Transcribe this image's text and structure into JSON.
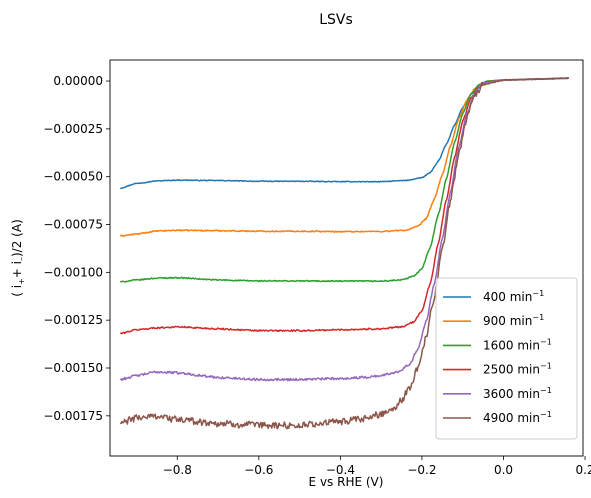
{
  "chart_data": {
    "type": "line",
    "title": "LSVs",
    "xlabel": "E vs RHE (V)",
    "ylabel": {
      "prefix": "( i",
      "sub1": "+",
      "mid": "+ i",
      "sub2": "–",
      "suffix": ")/2 (A)"
    },
    "xlim": [
      -0.965,
      0.195
    ],
    "ylim": [
      -0.00196,
      0.00011
    ],
    "xticks": [
      {
        "value": -0.8,
        "label": "−0.8"
      },
      {
        "value": -0.6,
        "label": "−0.6"
      },
      {
        "value": -0.4,
        "label": "−0.4"
      },
      {
        "value": -0.2,
        "label": "−0.2"
      },
      {
        "value": 0.0,
        "label": "0.0"
      },
      {
        "value": 0.2,
        "label": "0.2"
      }
    ],
    "yticks": [
      {
        "value": 0.0,
        "label": "0.00000"
      },
      {
        "value": -0.00025,
        "label": "−0.00025"
      },
      {
        "value": -0.0005,
        "label": "−0.00050"
      },
      {
        "value": -0.00075,
        "label": "−0.00075"
      },
      {
        "value": -0.001,
        "label": "−0.00100"
      },
      {
        "value": -0.00125,
        "label": "−0.00125"
      },
      {
        "value": -0.0015,
        "label": "−0.00150"
      },
      {
        "value": -0.00175,
        "label": "−0.00175"
      }
    ],
    "legend_position": "lower-right",
    "series": [
      {
        "name": "400 min",
        "sup": "−1",
        "color": "#1f77b4",
        "noise": 2e-06,
        "points": [
          [
            -0.94,
            -0.00056
          ],
          [
            -0.9,
            -0.000535
          ],
          [
            -0.85,
            -0.000522
          ],
          [
            -0.8,
            -0.000518
          ],
          [
            -0.7,
            -0.00052
          ],
          [
            -0.6,
            -0.000524
          ],
          [
            -0.5,
            -0.000524
          ],
          [
            -0.4,
            -0.000526
          ],
          [
            -0.3,
            -0.000526
          ],
          [
            -0.24,
            -0.00052
          ],
          [
            -0.2,
            -0.000505
          ],
          [
            -0.18,
            -0.00048
          ],
          [
            -0.16,
            -0.00042
          ],
          [
            -0.14,
            -0.00033
          ],
          [
            -0.12,
            -0.00023
          ],
          [
            -0.1,
            -0.00014
          ],
          [
            -0.08,
            -7e-05
          ],
          [
            -0.06,
            -3e-05
          ],
          [
            -0.04,
            -5e-06
          ],
          [
            -0.02,
            3e-06
          ],
          [
            0.0,
            6e-06
          ],
          [
            0.1,
            1.2e-05
          ],
          [
            0.16,
            1.6e-05
          ]
        ]
      },
      {
        "name": "900 min",
        "sup": "−1",
        "color": "#ff7f0e",
        "noise": 3e-06,
        "points": [
          [
            -0.94,
            -0.00081
          ],
          [
            -0.9,
            -0.0008
          ],
          [
            -0.85,
            -0.000784
          ],
          [
            -0.8,
            -0.00078
          ],
          [
            -0.7,
            -0.000782
          ],
          [
            -0.6,
            -0.000785
          ],
          [
            -0.5,
            -0.000785
          ],
          [
            -0.4,
            -0.000787
          ],
          [
            -0.3,
            -0.000786
          ],
          [
            -0.24,
            -0.00078
          ],
          [
            -0.21,
            -0.00076
          ],
          [
            -0.19,
            -0.00072
          ],
          [
            -0.17,
            -0.00062
          ],
          [
            -0.15,
            -0.00049
          ],
          [
            -0.13,
            -0.00034
          ],
          [
            -0.11,
            -0.0002
          ],
          [
            -0.09,
            -0.0001
          ],
          [
            -0.07,
            -4e-05
          ],
          [
            -0.05,
            -1e-05
          ],
          [
            -0.03,
            0.0
          ],
          [
            0.0,
            5e-06
          ],
          [
            0.1,
            1.1e-05
          ],
          [
            0.16,
            1.5e-05
          ]
        ]
      },
      {
        "name": "1600 min",
        "sup": "−1",
        "color": "#2ca02c",
        "noise": 3e-06,
        "points": [
          [
            -0.94,
            -0.00105
          ],
          [
            -0.9,
            -0.00104
          ],
          [
            -0.85,
            -0.00103
          ],
          [
            -0.8,
            -0.001028
          ],
          [
            -0.7,
            -0.00104
          ],
          [
            -0.6,
            -0.001045
          ],
          [
            -0.5,
            -0.001045
          ],
          [
            -0.4,
            -0.001046
          ],
          [
            -0.3,
            -0.001046
          ],
          [
            -0.25,
            -0.00104
          ],
          [
            -0.22,
            -0.00102
          ],
          [
            -0.2,
            -0.00098
          ],
          [
            -0.18,
            -0.00087
          ],
          [
            -0.16,
            -0.0007
          ],
          [
            -0.14,
            -0.00051
          ],
          [
            -0.12,
            -0.00032
          ],
          [
            -0.1,
            -0.00017
          ],
          [
            -0.08,
            -7e-05
          ],
          [
            -0.06,
            -2e-05
          ],
          [
            -0.04,
            0.0
          ],
          [
            0.0,
            5e-06
          ],
          [
            0.1,
            1.1e-05
          ],
          [
            0.16,
            1.5e-05
          ]
        ]
      },
      {
        "name": "2500 min",
        "sup": "−1",
        "color": "#d62728",
        "noise": 4e-06,
        "points": [
          [
            -0.94,
            -0.00132
          ],
          [
            -0.9,
            -0.0013
          ],
          [
            -0.85,
            -0.00129
          ],
          [
            -0.8,
            -0.001285
          ],
          [
            -0.7,
            -0.001295
          ],
          [
            -0.6,
            -0.001305
          ],
          [
            -0.5,
            -0.001305
          ],
          [
            -0.4,
            -0.0013
          ],
          [
            -0.3,
            -0.001295
          ],
          [
            -0.25,
            -0.001285
          ],
          [
            -0.22,
            -0.00126
          ],
          [
            -0.2,
            -0.0012
          ],
          [
            -0.18,
            -0.00106
          ],
          [
            -0.16,
            -0.00085
          ],
          [
            -0.14,
            -0.00062
          ],
          [
            -0.12,
            -0.0004
          ],
          [
            -0.1,
            -0.00021
          ],
          [
            -0.08,
            -9e-05
          ],
          [
            -0.06,
            -3e-05
          ],
          [
            -0.04,
            -5e-06
          ],
          [
            0.0,
            5e-06
          ],
          [
            0.1,
            1.1e-05
          ],
          [
            0.16,
            1.5e-05
          ]
        ]
      },
      {
        "name": "3600 min",
        "sup": "−1",
        "color": "#9467bd",
        "noise": 6e-06,
        "points": [
          [
            -0.94,
            -0.00156
          ],
          [
            -0.9,
            -0.00154
          ],
          [
            -0.85,
            -0.00152
          ],
          [
            -0.8,
            -0.001525
          ],
          [
            -0.7,
            -0.00155
          ],
          [
            -0.6,
            -0.00156
          ],
          [
            -0.5,
            -0.00156
          ],
          [
            -0.4,
            -0.001555
          ],
          [
            -0.35,
            -0.00155
          ],
          [
            -0.3,
            -0.00154
          ],
          [
            -0.26,
            -0.00152
          ],
          [
            -0.23,
            -0.00148
          ],
          [
            -0.21,
            -0.0014
          ],
          [
            -0.19,
            -0.00126
          ],
          [
            -0.17,
            -0.00106
          ],
          [
            -0.15,
            -0.00082
          ],
          [
            -0.13,
            -0.00058
          ],
          [
            -0.11,
            -0.00035
          ],
          [
            -0.09,
            -0.00017
          ],
          [
            -0.07,
            -6e-05
          ],
          [
            -0.05,
            -1e-05
          ],
          [
            0.0,
            5e-06
          ],
          [
            0.1,
            1.1e-05
          ],
          [
            0.16,
            1.5e-05
          ]
        ]
      },
      {
        "name": "4900 min",
        "sup": "−1",
        "color": "#8c564b",
        "noise": 1.8e-05,
        "points": [
          [
            -0.94,
            -0.00179
          ],
          [
            -0.9,
            -0.00176
          ],
          [
            -0.85,
            -0.00175
          ],
          [
            -0.8,
            -0.00177
          ],
          [
            -0.7,
            -0.00179
          ],
          [
            -0.6,
            -0.0018
          ],
          [
            -0.5,
            -0.0018
          ],
          [
            -0.4,
            -0.00178
          ],
          [
            -0.35,
            -0.00177
          ],
          [
            -0.3,
            -0.00174
          ],
          [
            -0.27,
            -0.00171
          ],
          [
            -0.25,
            -0.00167
          ],
          [
            -0.23,
            -0.0016
          ],
          [
            -0.21,
            -0.0015
          ],
          [
            -0.19,
            -0.00134
          ],
          [
            -0.17,
            -0.00113
          ],
          [
            -0.15,
            -0.00088
          ],
          [
            -0.13,
            -0.00062
          ],
          [
            -0.11,
            -0.00038
          ],
          [
            -0.09,
            -0.00019
          ],
          [
            -0.07,
            -7e-05
          ],
          [
            -0.05,
            -2e-05
          ],
          [
            0.0,
            5e-06
          ],
          [
            0.1,
            1.1e-05
          ],
          [
            0.16,
            1.5e-05
          ]
        ]
      }
    ]
  }
}
